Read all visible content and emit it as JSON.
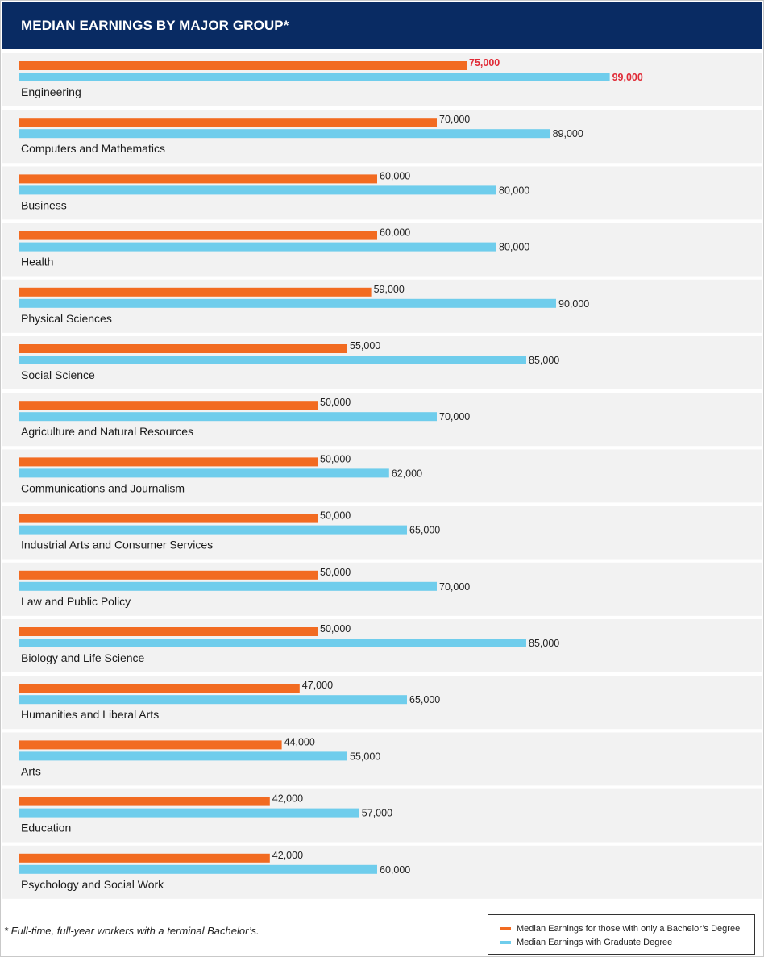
{
  "header": {
    "title": "MEDIAN EARNINGS BY MAJOR GROUP*"
  },
  "footnote": "* Full-time, full-year workers with a terminal Bachelor’s.",
  "legend": {
    "bachelor": "Median Earnings for those with only a Bachelor’s Degree",
    "graduate": "Median Earnings with Graduate Degree"
  },
  "colors": {
    "bachelor": "#f26b21",
    "graduate": "#6fcdec",
    "highlight": "#e02a36",
    "header_bg": "#092b63",
    "row_bg": "#f2f2f2"
  },
  "chart_data": {
    "type": "bar",
    "orientation": "horizontal",
    "categories": [
      "Engineering",
      "Computers and Mathematics",
      "Business",
      "Health",
      "Physical Sciences",
      "Social Science",
      "Agriculture and Natural Resources",
      "Communications and Journalism",
      "Industrial Arts and Consumer Services",
      "Law and Public Policy",
      "Biology and Life Science",
      "Humanities and Liberal Arts",
      "Arts",
      "Education",
      "Psychology and Social Work"
    ],
    "series": [
      {
        "name": "Median Earnings for those with only a Bachelor’s Degree",
        "values": [
          75000,
          70000,
          60000,
          60000,
          59000,
          55000,
          50000,
          50000,
          50000,
          50000,
          50000,
          47000,
          44000,
          42000,
          42000
        ],
        "labels": [
          "75,000",
          "70,000",
          "60,000",
          "60,000",
          "59,000",
          "55,000",
          "50,000",
          "50,000",
          "50,000",
          "50,000",
          "50,000",
          "47,000",
          "44,000",
          "42,000",
          "42,000"
        ]
      },
      {
        "name": "Median Earnings with Graduate Degree",
        "values": [
          99000,
          89000,
          80000,
          80000,
          90000,
          85000,
          70000,
          62000,
          65000,
          70000,
          85000,
          65000,
          55000,
          57000,
          60000
        ],
        "labels": [
          "99,000",
          "89,000",
          "80,000",
          "80,000",
          "90,000",
          "85,000",
          "70,000",
          "62,000",
          "65,000",
          "70,000",
          "85,000",
          "65,000",
          "55,000",
          "57,000",
          "60,000"
        ]
      }
    ],
    "highlight_category": "Engineering",
    "title": "MEDIAN EARNINGS BY MAJOR GROUP*",
    "xlabel": "",
    "ylabel": "",
    "xlim": [
      0,
      100000
    ],
    "grid": false,
    "legend_position": "bottom-right"
  }
}
